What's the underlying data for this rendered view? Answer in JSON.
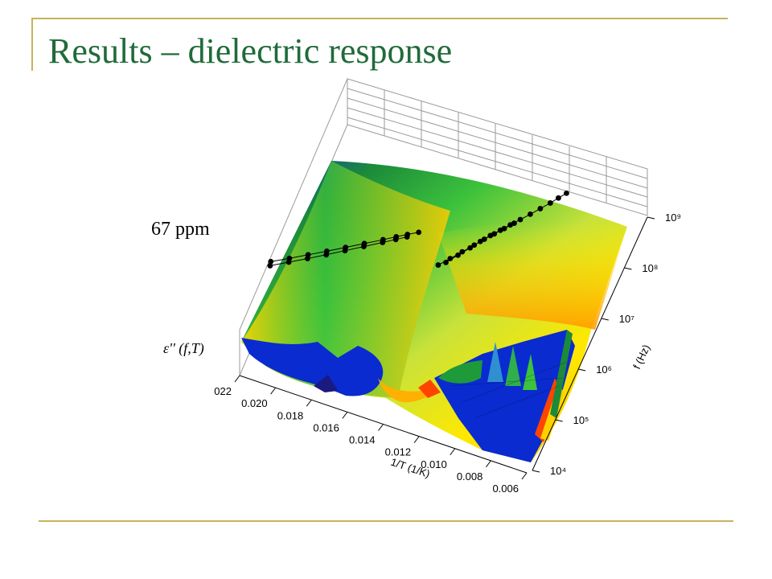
{
  "slide": {
    "title": "Results – dielectric response"
  },
  "colors": {
    "title": "#1f6b3a",
    "rule": "#c9b25a",
    "surface_low": "#0a2bd0",
    "surface_mid": "#3cc23c",
    "surface_high": "#ffd000",
    "surface_peak": "#ff4400",
    "points": "#000000"
  },
  "chart_data": {
    "type": "surface3d",
    "annotation": "67 ppm",
    "zlabel": "ε'' (f,T)",
    "xlabel": "1/T (1/K)",
    "ylabel": "f (Hz)",
    "x_ticks": [
      "022",
      "0.020",
      "0.018",
      "0.016",
      "0.014",
      "0.012",
      "0.010",
      "0.008",
      "0.006"
    ],
    "x_range": [
      0.022,
      0.006
    ],
    "y_ticks": [
      "10⁴",
      "10⁵",
      "10⁶",
      "10⁷",
      "10⁸",
      "10⁹"
    ],
    "y_range_log10": [
      4,
      9
    ],
    "series": [
      {
        "points": [
          {
            "x": 0.0215,
            "logf": 8.2
          },
          {
            "x": 0.0205,
            "logf": 8.21
          },
          {
            "x": 0.0195,
            "logf": 8.23
          },
          {
            "x": 0.0185,
            "logf": 8.25
          },
          {
            "x": 0.0175,
            "logf": 8.28
          },
          {
            "x": 0.0165,
            "logf": 8.31
          },
          {
            "x": 0.0155,
            "logf": 8.34
          },
          {
            "x": 0.0148,
            "logf": 8.37
          },
          {
            "x": 0.0142,
            "logf": 8.39
          },
          {
            "x": 0.0136,
            "logf": 8.4
          }
        ]
      },
      {
        "points": [
          {
            "x": 0.0215,
            "logf": 8.05
          },
          {
            "x": 0.0205,
            "logf": 8.07
          },
          {
            "x": 0.0195,
            "logf": 8.09
          },
          {
            "x": 0.0185,
            "logf": 8.12
          },
          {
            "x": 0.0175,
            "logf": 8.16
          },
          {
            "x": 0.0165,
            "logf": 8.2
          },
          {
            "x": 0.0155,
            "logf": 8.24
          },
          {
            "x": 0.0148,
            "logf": 8.27
          },
          {
            "x": 0.0142,
            "logf": 8.3
          }
        ]
      },
      {
        "points": [
          {
            "x": 0.0118,
            "logf": 7.1
          },
          {
            "x": 0.0112,
            "logf": 7.3
          },
          {
            "x": 0.0106,
            "logf": 7.5
          },
          {
            "x": 0.0101,
            "logf": 7.68
          },
          {
            "x": 0.0096,
            "logf": 7.84
          },
          {
            "x": 0.0091,
            "logf": 7.98
          },
          {
            "x": 0.0086,
            "logf": 8.12
          },
          {
            "x": 0.0081,
            "logf": 8.26
          },
          {
            "x": 0.0076,
            "logf": 8.4
          },
          {
            "x": 0.0071,
            "logf": 8.55
          },
          {
            "x": 0.0066,
            "logf": 8.7
          },
          {
            "x": 0.0062,
            "logf": 8.84
          },
          {
            "x": 0.0058,
            "logf": 8.97
          }
        ]
      },
      {
        "points": [
          {
            "x": 0.0122,
            "logf": 7.05
          },
          {
            "x": 0.0116,
            "logf": 7.22
          },
          {
            "x": 0.011,
            "logf": 7.4
          },
          {
            "x": 0.0104,
            "logf": 7.58
          },
          {
            "x": 0.0099,
            "logf": 7.74
          },
          {
            "x": 0.0094,
            "logf": 7.88
          },
          {
            "x": 0.0089,
            "logf": 8.02
          },
          {
            "x": 0.0084,
            "logf": 8.16
          }
        ]
      }
    ]
  }
}
